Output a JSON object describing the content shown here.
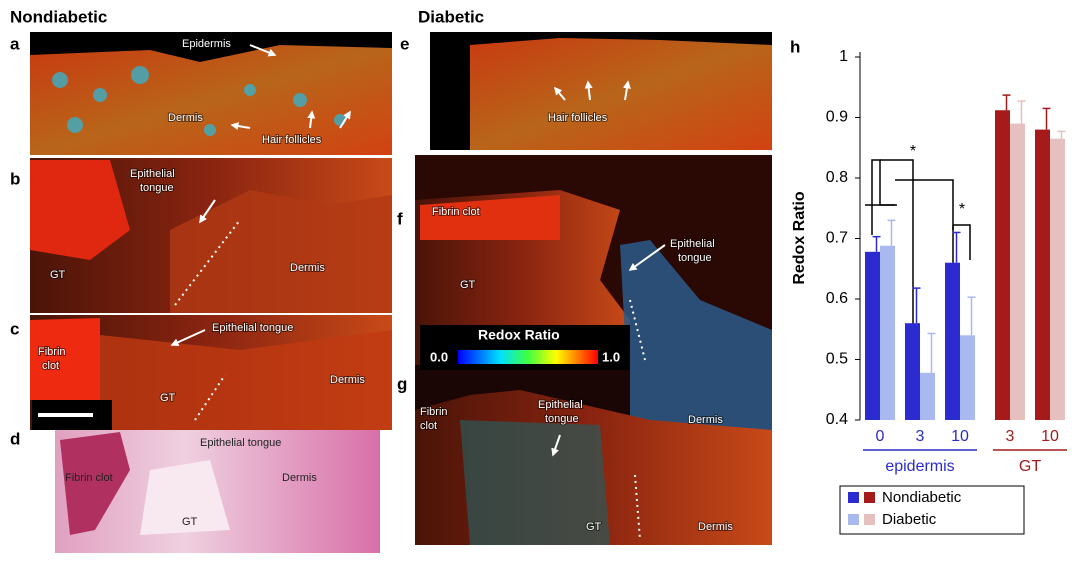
{
  "figure": {
    "titles": [
      "Nondiabetic",
      "Diabetic"
    ],
    "panels": [
      {
        "label": "a",
        "annotations": [
          "Epidermis",
          "Dermis",
          "Hair follicles"
        ]
      },
      {
        "label": "b",
        "annotations": [
          "Epithelial",
          "tongue",
          "GT",
          "Dermis"
        ]
      },
      {
        "label": "c",
        "annotations": [
          "Epithelial tongue",
          "Fibrin",
          "clot",
          "GT",
          "Dermis"
        ]
      },
      {
        "label": "d",
        "annotations": [
          "Epithelial tongue",
          "Fibrin clot",
          "GT",
          "Dermis"
        ]
      },
      {
        "label": "e",
        "annotations": [
          "Hair follicles"
        ]
      },
      {
        "label": "f",
        "annotations": [
          "Fibrin clot",
          "Epithelial",
          "tongue",
          "GT",
          "Dermis"
        ]
      },
      {
        "label": "g",
        "annotations": [
          "Fibrin",
          "clot",
          "Epithelial",
          "tongue",
          "GT",
          "Dermis"
        ]
      }
    ],
    "colorbar": {
      "title": "Redox Ratio",
      "min": "0.0",
      "max": "1.0"
    }
  },
  "chart_data": {
    "type": "bar",
    "panel_label": "h",
    "ylabel": "Redox Ratio",
    "categories": [
      "0",
      "3",
      "10",
      "3",
      "10"
    ],
    "groups": [
      {
        "label": "epidermis",
        "color": "#2b2bc8",
        "count": 3
      },
      {
        "label": "GT",
        "color": "#a01c1c",
        "count": 2
      }
    ],
    "series": [
      {
        "name": "Nondiabetic",
        "colors": [
          "#2b2bd0",
          "#2b2bd0",
          "#2b2bd0",
          "#a51a1a",
          "#a51a1a"
        ],
        "values": [
          0.678,
          0.56,
          0.66,
          0.912,
          0.88
        ],
        "errors": [
          0.025,
          0.058,
          0.05,
          0.025,
          0.035
        ]
      },
      {
        "name": "Diabetic",
        "colors": [
          "#a9b9ef",
          "#a9b9ef",
          "#a9b9ef",
          "#e6bfbf",
          "#e6bfbf"
        ],
        "values": [
          0.688,
          0.478,
          0.54,
          0.89,
          0.865
        ],
        "errors": [
          0.042,
          0.065,
          0.063,
          0.037,
          0.012
        ]
      }
    ],
    "ylim": [
      0.4,
      1
    ],
    "yticks": [
      0.4,
      0.5,
      0.6,
      0.7,
      0.8,
      0.9,
      1
    ],
    "annotations": [
      "*",
      "*"
    ]
  }
}
